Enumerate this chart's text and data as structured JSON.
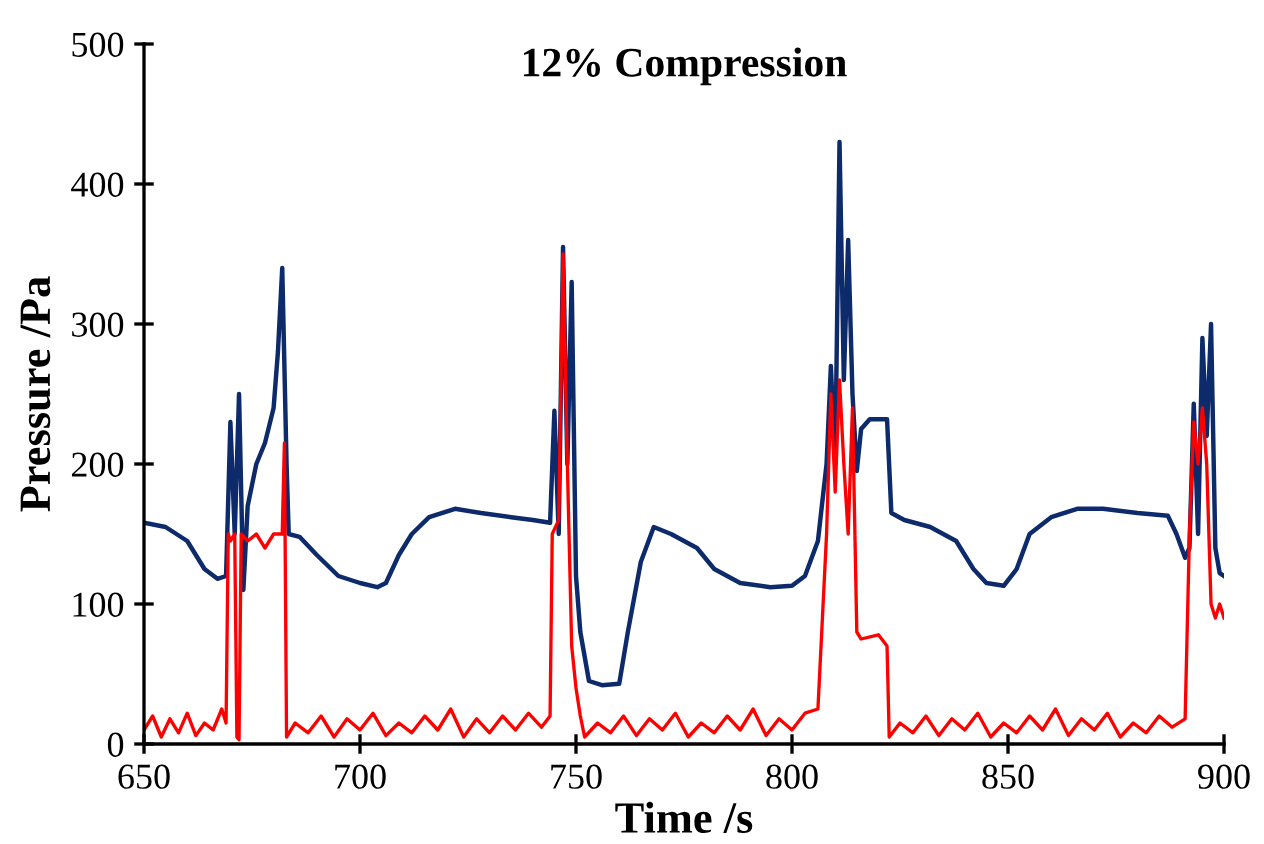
{
  "chart_data": {
    "type": "line",
    "title": "12% Compression",
    "xlabel": "Time /s",
    "ylabel": "Pressure /Pa",
    "xlim": [
      650,
      900
    ],
    "xticks": [
      650,
      700,
      750,
      800,
      850,
      900
    ],
    "ylim": [
      0,
      500
    ],
    "yticks": [
      0,
      100,
      200,
      300,
      400,
      500
    ],
    "grid": false,
    "legend": false,
    "marker": "none",
    "line_style": "solid",
    "series": [
      {
        "color": "#0d2a6b",
        "x": [
          650,
          655,
          660,
          664,
          667,
          669,
          670,
          671,
          672,
          673,
          674,
          676,
          678,
          680,
          681,
          682,
          683,
          683.5,
          686,
          690,
          695,
          700,
          704,
          706,
          709,
          712,
          716,
          722,
          728,
          735,
          740,
          744,
          745,
          746,
          747,
          748,
          749,
          750,
          751,
          753,
          756,
          760,
          762,
          765,
          768,
          772,
          778,
          782,
          788,
          795,
          800,
          803,
          806,
          808,
          809,
          810,
          811,
          812,
          813,
          814,
          815,
          816,
          818,
          822,
          823,
          826,
          832,
          838,
          842,
          845,
          849,
          852,
          855,
          860,
          866,
          872,
          880,
          887,
          889,
          891,
          892,
          893,
          894,
          895,
          896,
          897,
          898,
          899,
          900
        ],
        "values": [
          158,
          155,
          145,
          125,
          118,
          120,
          230,
          150,
          250,
          110,
          170,
          200,
          215,
          240,
          280,
          340,
          200,
          150,
          148,
          135,
          120,
          115,
          112,
          115,
          135,
          150,
          162,
          168,
          165,
          162,
          160,
          158,
          238,
          150,
          355,
          200,
          330,
          120,
          80,
          45,
          42,
          43,
          80,
          130,
          155,
          150,
          140,
          125,
          115,
          112,
          113,
          120,
          145,
          200,
          270,
          200,
          430,
          260,
          360,
          250,
          195,
          225,
          232,
          232,
          165,
          160,
          155,
          145,
          125,
          115,
          113,
          125,
          150,
          162,
          168,
          168,
          165,
          163,
          150,
          133,
          140,
          243,
          150,
          290,
          220,
          300,
          140,
          122,
          120
        ]
      },
      {
        "color": "#ff0000",
        "x": [
          650,
          652,
          654,
          656,
          658,
          660,
          662,
          664,
          666,
          668,
          669,
          669.5,
          670,
          671,
          671.5,
          672,
          672.5,
          674,
          676,
          678,
          680,
          682,
          682.5,
          683,
          685,
          688,
          691,
          694,
          697,
          700,
          703,
          706,
          709,
          712,
          715,
          718,
          721,
          724,
          727,
          730,
          733,
          736,
          739,
          742,
          744,
          744.5,
          746,
          747,
          748,
          749,
          750,
          751,
          752,
          755,
          758,
          761,
          764,
          767,
          770,
          773,
          776,
          779,
          782,
          785,
          788,
          791,
          794,
          797,
          800,
          803,
          806,
          808,
          809,
          810,
          811,
          812,
          813,
          814,
          815,
          816,
          820,
          822,
          822.5,
          825,
          828,
          831,
          834,
          837,
          840,
          843,
          846,
          849,
          852,
          855,
          858,
          861,
          864,
          867,
          870,
          873,
          876,
          879,
          882,
          885,
          888,
          891,
          892,
          893,
          894,
          895,
          896,
          897,
          898,
          899,
          900
        ],
        "values": [
          10,
          20,
          5,
          18,
          8,
          22,
          6,
          15,
          10,
          25,
          15,
          150,
          145,
          150,
          5,
          3,
          150,
          145,
          150,
          140,
          150,
          150,
          215,
          5,
          15,
          8,
          20,
          5,
          18,
          10,
          22,
          6,
          15,
          8,
          20,
          10,
          25,
          5,
          18,
          8,
          20,
          10,
          22,
          12,
          20,
          150,
          160,
          350,
          200,
          70,
          40,
          20,
          5,
          15,
          8,
          20,
          6,
          18,
          10,
          22,
          5,
          15,
          8,
          20,
          10,
          25,
          6,
          18,
          10,
          22,
          25,
          150,
          250,
          180,
          260,
          200,
          150,
          240,
          80,
          75,
          78,
          70,
          5,
          15,
          8,
          20,
          6,
          18,
          10,
          22,
          5,
          15,
          8,
          20,
          10,
          25,
          6,
          18,
          10,
          22,
          5,
          15,
          8,
          20,
          12,
          18,
          150,
          230,
          200,
          240,
          200,
          100,
          90,
          100,
          90
        ]
      }
    ]
  }
}
